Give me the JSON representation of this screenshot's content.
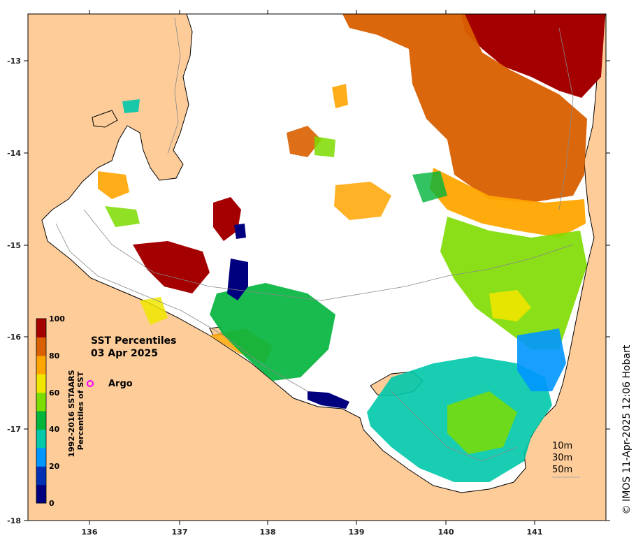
{
  "map": {
    "title": "SST Percentiles",
    "date": "03 Apr 2025",
    "copyright": "© IMOS 11-Apr-2025 12:06 Hobart",
    "lon_ticks": [
      "136",
      "137",
      "138",
      "139",
      "140",
      "141"
    ],
    "lat_ticks": [
      "-13",
      "-14",
      "-15",
      "-16",
      "-17",
      "-18"
    ],
    "colors": {
      "land": "#fdcc99",
      "background": "#ffffff"
    }
  },
  "colorbar": {
    "label_line1": "1992-2016 SSTAARS",
    "label_line2": "Percentiles of SST",
    "ticks": [
      "0",
      "20",
      "40",
      "60",
      "80",
      "100"
    ],
    "colors": [
      "#00007f",
      "#0031b5",
      "#0096ff",
      "#00c8aa",
      "#00b43c",
      "#7ddc00",
      "#f0e600",
      "#ffa500",
      "#d95f00",
      "#a50000"
    ]
  },
  "legend": {
    "argo_label": "Argo",
    "argo_color": "#ff00ff"
  },
  "depth_legend": {
    "items": [
      "10m",
      "30m",
      "50m"
    ]
  }
}
